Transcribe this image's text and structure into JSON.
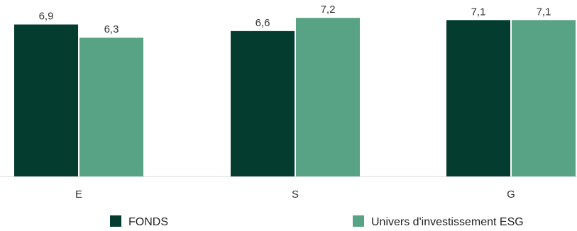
{
  "chart_data": {
    "type": "bar",
    "categories": [
      "E",
      "S",
      "G"
    ],
    "series": [
      {
        "name": "FONDS",
        "values": [
          6.9,
          6.6,
          7.1
        ],
        "color": "#043d30"
      },
      {
        "name": "Univers d'investissement ESG",
        "values": [
          6.3,
          7.2,
          7.1
        ],
        "color": "#58a385"
      }
    ],
    "value_labels": [
      [
        "6,9",
        "6,6",
        "7,1"
      ],
      [
        "6,3",
        "7,2",
        "7,1"
      ]
    ],
    "title": "",
    "xlabel": "",
    "ylabel": "",
    "ylim": [
      0,
      7.4
    ],
    "grid": false,
    "legend_position": "bottom",
    "baseline_color": "#d9d9d9"
  }
}
